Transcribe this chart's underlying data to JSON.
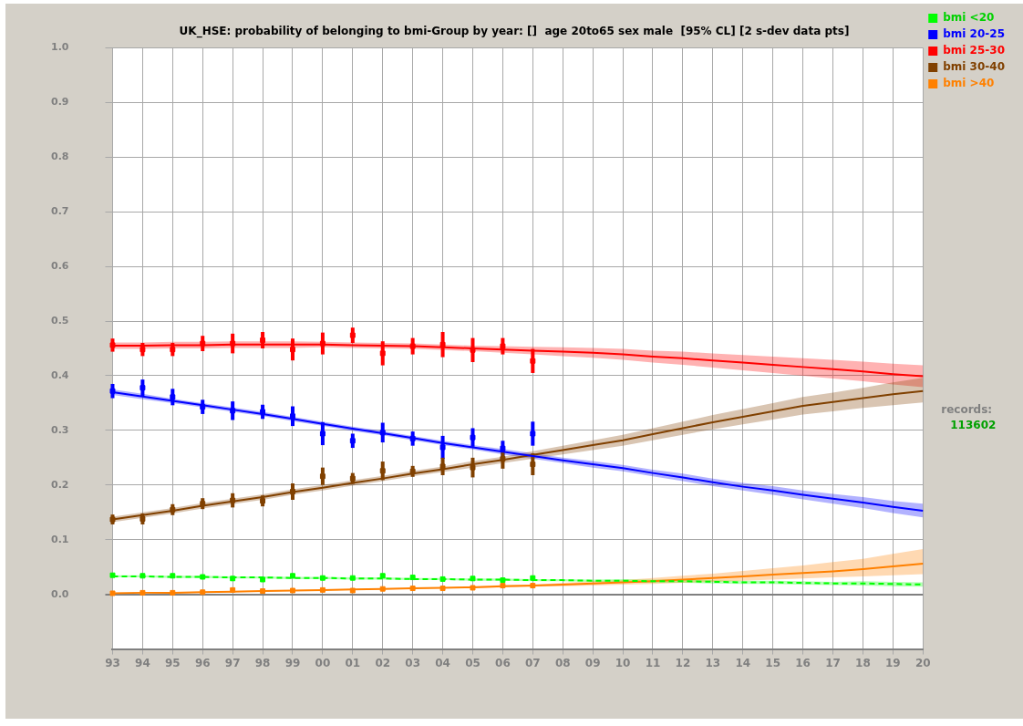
{
  "chart_data": {
    "type": "line",
    "title": "UK_HSE: probability of belonging to bmi-Group by year: []  age 20to65 sex male  [95% CL] [2 s-dev data pts]",
    "categories": [
      "93",
      "94",
      "95",
      "96",
      "97",
      "98",
      "99",
      "00",
      "01",
      "02",
      "03",
      "04",
      "05",
      "06",
      "07",
      "08",
      "09",
      "10",
      "11",
      "12",
      "13",
      "14",
      "15",
      "16",
      "17",
      "18",
      "19",
      "20"
    ],
    "ylim": [
      -0.1,
      1.0
    ],
    "yticks": [
      {
        "value": 0,
        "label": "0.0"
      },
      0.1,
      0.2,
      0.3,
      0.4,
      0.5,
      0.6,
      0.7,
      0.8,
      0.9,
      {
        "value": 1,
        "label": "1.0"
      }
    ],
    "grid": true,
    "legend": "top right",
    "annotations": [
      "records:",
      "113602"
    ],
    "series": [
      {
        "name": "bmi <20",
        "line_style": "dashed",
        "color": "#00ff00",
        "values": [
          0.033,
          0.033,
          0.032,
          0.032,
          0.031,
          0.031,
          0.03,
          0.03,
          0.029,
          0.029,
          0.028,
          0.028,
          0.027,
          0.027,
          0.026,
          0.026,
          0.025,
          0.025,
          0.024,
          0.024,
          0.023,
          0.022,
          0.022,
          0.021,
          0.02,
          0.02,
          0.019,
          0.018
        ],
        "lower": [
          0.031,
          0.031,
          0.03,
          0.03,
          0.029,
          0.029,
          0.028,
          0.028,
          0.027,
          0.027,
          0.026,
          0.026,
          0.025,
          0.025,
          0.024,
          0.024,
          0.023,
          0.022,
          0.021,
          0.021,
          0.02,
          0.019,
          0.019,
          0.018,
          0.017,
          0.016,
          0.015,
          0.014
        ],
        "upper": [
          0.035,
          0.035,
          0.034,
          0.034,
          0.033,
          0.033,
          0.032,
          0.032,
          0.031,
          0.031,
          0.03,
          0.03,
          0.029,
          0.029,
          0.028,
          0.028,
          0.027,
          0.028,
          0.027,
          0.027,
          0.026,
          0.025,
          0.025,
          0.024,
          0.023,
          0.024,
          0.023,
          0.022
        ]
      },
      {
        "name": "bmi 20-25",
        "color": "#0000ff",
        "values": [
          0.37,
          0.362,
          0.354,
          0.346,
          0.338,
          0.33,
          0.321,
          0.312,
          0.303,
          0.295,
          0.286,
          0.277,
          0.269,
          0.261,
          0.253,
          0.245,
          0.238,
          0.231,
          0.222,
          0.214,
          0.205,
          0.197,
          0.19,
          0.182,
          0.175,
          0.168,
          0.16,
          0.153
        ],
        "lower": [
          0.365,
          0.357,
          0.35,
          0.342,
          0.334,
          0.326,
          0.317,
          0.308,
          0.299,
          0.291,
          0.282,
          0.273,
          0.265,
          0.256,
          0.248,
          0.24,
          0.232,
          0.225,
          0.216,
          0.207,
          0.198,
          0.19,
          0.182,
          0.174,
          0.166,
          0.158,
          0.149,
          0.141
        ],
        "upper": [
          0.375,
          0.367,
          0.358,
          0.35,
          0.342,
          0.334,
          0.325,
          0.316,
          0.307,
          0.299,
          0.29,
          0.281,
          0.273,
          0.266,
          0.258,
          0.25,
          0.244,
          0.237,
          0.228,
          0.221,
          0.212,
          0.204,
          0.198,
          0.19,
          0.184,
          0.178,
          0.171,
          0.166
        ]
      },
      {
        "name": "bmi 25-30",
        "color": "#ff0000",
        "values": [
          0.455,
          0.455,
          0.456,
          0.456,
          0.457,
          0.457,
          0.457,
          0.457,
          0.456,
          0.455,
          0.454,
          0.452,
          0.45,
          0.448,
          0.446,
          0.444,
          0.442,
          0.439,
          0.435,
          0.432,
          0.428,
          0.424,
          0.42,
          0.416,
          0.412,
          0.408,
          0.403,
          0.399
        ],
        "lower": [
          0.449,
          0.449,
          0.45,
          0.45,
          0.451,
          0.451,
          0.451,
          0.452,
          0.451,
          0.45,
          0.449,
          0.447,
          0.445,
          0.442,
          0.439,
          0.436,
          0.433,
          0.429,
          0.424,
          0.42,
          0.415,
          0.41,
          0.405,
          0.4,
          0.395,
          0.39,
          0.384,
          0.379
        ],
        "upper": [
          0.461,
          0.461,
          0.462,
          0.462,
          0.463,
          0.463,
          0.463,
          0.462,
          0.461,
          0.46,
          0.459,
          0.457,
          0.455,
          0.454,
          0.453,
          0.452,
          0.451,
          0.449,
          0.446,
          0.444,
          0.441,
          0.438,
          0.435,
          0.432,
          0.429,
          0.426,
          0.422,
          0.419
        ]
      },
      {
        "name": "bmi 30-40",
        "color": "#804000",
        "values": [
          0.137,
          0.145,
          0.153,
          0.162,
          0.17,
          0.178,
          0.187,
          0.195,
          0.204,
          0.212,
          0.221,
          0.229,
          0.238,
          0.246,
          0.255,
          0.264,
          0.273,
          0.282,
          0.293,
          0.304,
          0.315,
          0.325,
          0.335,
          0.345,
          0.352,
          0.359,
          0.366,
          0.372
        ],
        "lower": [
          0.132,
          0.14,
          0.148,
          0.157,
          0.165,
          0.173,
          0.182,
          0.19,
          0.199,
          0.207,
          0.216,
          0.224,
          0.232,
          0.24,
          0.248,
          0.256,
          0.264,
          0.272,
          0.282,
          0.292,
          0.302,
          0.311,
          0.32,
          0.329,
          0.335,
          0.341,
          0.346,
          0.351
        ],
        "upper": [
          0.142,
          0.15,
          0.158,
          0.167,
          0.175,
          0.183,
          0.192,
          0.2,
          0.209,
          0.217,
          0.226,
          0.234,
          0.244,
          0.252,
          0.262,
          0.272,
          0.282,
          0.292,
          0.304,
          0.316,
          0.328,
          0.339,
          0.35,
          0.361,
          0.369,
          0.378,
          0.388,
          0.396
        ]
      },
      {
        "name": "bmi >40",
        "color": "#ff8000",
        "values": [
          0.002,
          0.003,
          0.003,
          0.004,
          0.005,
          0.006,
          0.007,
          0.008,
          0.009,
          0.01,
          0.011,
          0.012,
          0.013,
          0.015,
          0.016,
          0.018,
          0.02,
          0.022,
          0.024,
          0.027,
          0.03,
          0.033,
          0.036,
          0.039,
          0.042,
          0.046,
          0.051,
          0.056
        ],
        "lower": [
          0.001,
          0.002,
          0.002,
          0.003,
          0.004,
          0.005,
          0.006,
          0.007,
          0.008,
          0.009,
          0.01,
          0.011,
          0.011,
          0.013,
          0.014,
          0.015,
          0.016,
          0.018,
          0.019,
          0.021,
          0.023,
          0.025,
          0.027,
          0.029,
          0.031,
          0.033,
          0.035,
          0.037
        ],
        "upper": [
          0.003,
          0.004,
          0.004,
          0.005,
          0.006,
          0.007,
          0.008,
          0.009,
          0.01,
          0.011,
          0.012,
          0.013,
          0.015,
          0.017,
          0.018,
          0.021,
          0.024,
          0.026,
          0.03,
          0.034,
          0.038,
          0.043,
          0.048,
          0.053,
          0.059,
          0.065,
          0.074,
          0.083
        ]
      },
      {
        "type": "scatter",
        "marker": "square",
        "color": "#00ff00",
        "x": [
          "93",
          "94",
          "95",
          "96",
          "97",
          "98",
          "99",
          "00",
          "01",
          "02",
          "03",
          "04",
          "05",
          "06",
          "07"
        ],
        "values": [
          0.035,
          0.034,
          0.034,
          0.032,
          0.029,
          0.027,
          0.034,
          0.03,
          0.03,
          0.034,
          0.031,
          0.028,
          0.029,
          0.026,
          0.03
        ],
        "errors": [
          0.003,
          0.002,
          0.003,
          0.003,
          0.004,
          0.004,
          0.004,
          0.004,
          0.003,
          0.004,
          0.003,
          0.004,
          0.003,
          0.003,
          0.004
        ]
      },
      {
        "type": "scatter",
        "marker": "square",
        "color": "#0000ff",
        "x": [
          "93",
          "94",
          "95",
          "96",
          "97",
          "98",
          "99",
          "00",
          "01",
          "02",
          "03",
          "04",
          "05",
          "06",
          "07"
        ],
        "values": [
          0.372,
          0.378,
          0.361,
          0.343,
          0.336,
          0.334,
          0.326,
          0.294,
          0.281,
          0.296,
          0.285,
          0.269,
          0.287,
          0.267,
          0.294
        ],
        "errors": [
          0.013,
          0.015,
          0.015,
          0.013,
          0.017,
          0.013,
          0.018,
          0.021,
          0.013,
          0.018,
          0.013,
          0.021,
          0.017,
          0.014,
          0.022
        ]
      },
      {
        "type": "scatter",
        "marker": "square",
        "color": "#ff0000",
        "x": [
          "93",
          "94",
          "95",
          "96",
          "97",
          "98",
          "99",
          "00",
          "01",
          "02",
          "03",
          "04",
          "05",
          "06",
          "07"
        ],
        "values": [
          0.456,
          0.448,
          0.448,
          0.459,
          0.459,
          0.465,
          0.448,
          0.459,
          0.474,
          0.441,
          0.454,
          0.457,
          0.447,
          0.454,
          0.427
        ],
        "errors": [
          0.012,
          0.012,
          0.012,
          0.014,
          0.018,
          0.015,
          0.02,
          0.02,
          0.014,
          0.022,
          0.015,
          0.023,
          0.022,
          0.015,
          0.022
        ]
      },
      {
        "type": "scatter",
        "marker": "square",
        "color": "#804000",
        "x": [
          "93",
          "94",
          "95",
          "96",
          "97",
          "98",
          "99",
          "00",
          "01",
          "02",
          "03",
          "04",
          "05",
          "06",
          "07"
        ],
        "values": [
          0.137,
          0.138,
          0.155,
          0.166,
          0.172,
          0.171,
          0.188,
          0.216,
          0.212,
          0.226,
          0.225,
          0.234,
          0.232,
          0.248,
          0.238
        ],
        "errors": [
          0.009,
          0.01,
          0.01,
          0.01,
          0.013,
          0.01,
          0.015,
          0.016,
          0.01,
          0.017,
          0.01,
          0.016,
          0.018,
          0.018,
          0.02
        ]
      },
      {
        "type": "scatter",
        "marker": "square",
        "color": "#ff8000",
        "x": [
          "93",
          "94",
          "95",
          "96",
          "97",
          "98",
          "99",
          "00",
          "01",
          "02",
          "03",
          "04",
          "05",
          "06",
          "07"
        ],
        "values": [
          0.002,
          0.003,
          0.003,
          0.004,
          0.008,
          0.006,
          0.007,
          0.008,
          0.007,
          0.01,
          0.011,
          0.011,
          0.012,
          0.016,
          0.016
        ],
        "errors": [
          0.002,
          0.002,
          0.002,
          0.002,
          0.003,
          0.002,
          0.002,
          0.002,
          0.002,
          0.002,
          0.002,
          0.003,
          0.003,
          0.003,
          0.003
        ]
      }
    ]
  }
}
